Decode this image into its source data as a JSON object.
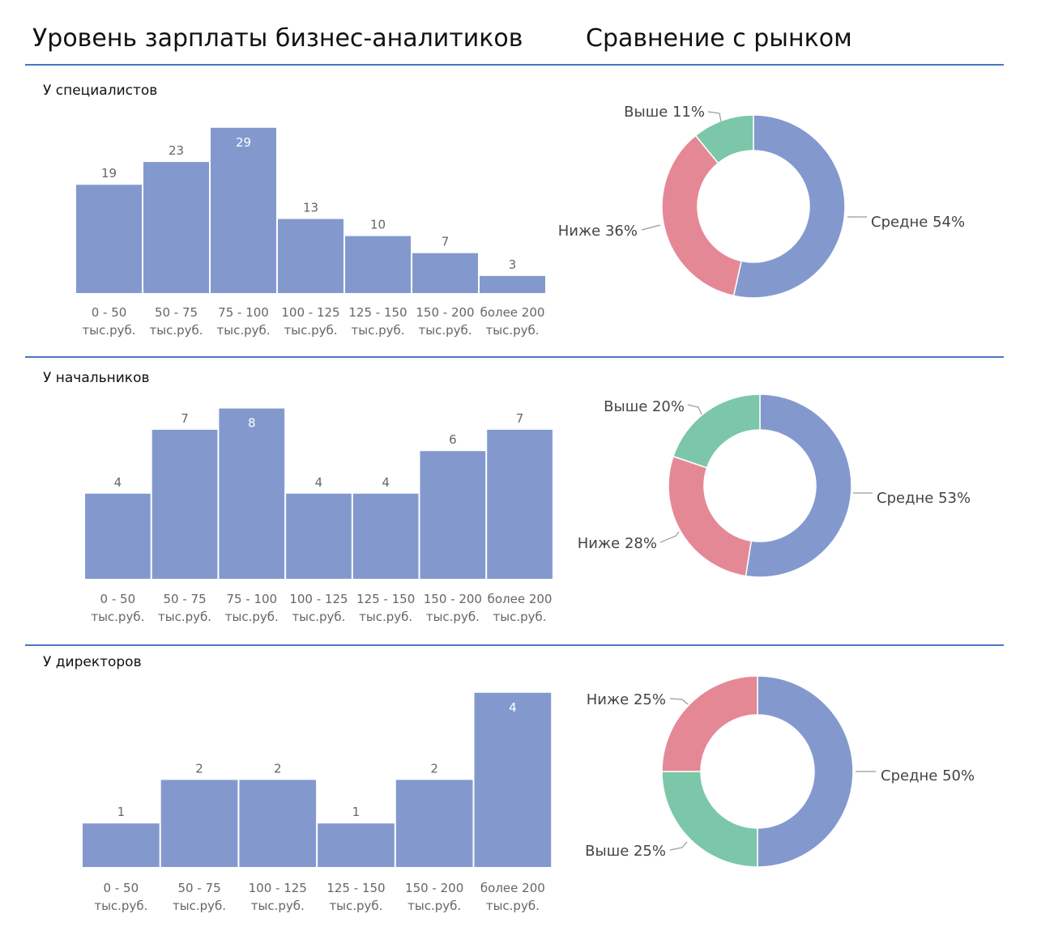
{
  "header": {
    "title_left": "Уровень зарплаты бизнес-аналитиков",
    "title_right": "Сравнение с рынком"
  },
  "chart_data": [
    {
      "id": "bar-specialists",
      "type": "bar",
      "title": "У специалистов",
      "categories": [
        [
          "0 - 50",
          "тыс.руб."
        ],
        [
          "50 - 75",
          "тыс.руб."
        ],
        [
          "75 - 100",
          "тыс.руб."
        ],
        [
          "100 - 125",
          "тыс.руб."
        ],
        [
          "125 - 150",
          "тыс.руб."
        ],
        [
          "150 - 200",
          "тыс.руб."
        ],
        [
          "более 200",
          "тыс.руб."
        ]
      ],
      "values": [
        19,
        23,
        29,
        13,
        10,
        7,
        3
      ],
      "grid": false,
      "color": "#8399ce"
    },
    {
      "id": "pie-specialists",
      "type": "pie",
      "donut": true,
      "slices": [
        {
          "label": "Средне 54%",
          "value": 54,
          "color": "#8399ce"
        },
        {
          "label": "Ниже 36%",
          "value": 36,
          "color": "#e58895"
        },
        {
          "label": "Выше 11%",
          "value": 11,
          "color": "#7cc7a9"
        }
      ]
    },
    {
      "id": "bar-managers",
      "type": "bar",
      "title": "У начальников",
      "categories": [
        [
          "0 - 50",
          "тыс.руб."
        ],
        [
          "50 - 75",
          "тыс.руб."
        ],
        [
          "75 - 100",
          "тыс.руб."
        ],
        [
          "100 - 125",
          "тыс.руб."
        ],
        [
          "125 - 150",
          "тыс.руб."
        ],
        [
          "150 - 200",
          "тыс.руб."
        ],
        [
          "более 200",
          "тыс.руб."
        ]
      ],
      "values": [
        4,
        7,
        8,
        4,
        4,
        6,
        7
      ],
      "grid": false,
      "color": "#8399ce"
    },
    {
      "id": "pie-managers",
      "type": "pie",
      "donut": true,
      "slices": [
        {
          "label": "Средне 53%",
          "value": 53,
          "color": "#8399ce"
        },
        {
          "label": "Ниже 28%",
          "value": 28,
          "color": "#e58895"
        },
        {
          "label": "Выше 20%",
          "value": 20,
          "color": "#7cc7a9"
        }
      ]
    },
    {
      "id": "bar-directors",
      "type": "bar",
      "title": "У директоров",
      "categories": [
        [
          "0 - 50",
          "тыс.руб."
        ],
        [
          "50 - 75",
          "тыс.руб."
        ],
        [
          "100 - 125",
          "тыс.руб."
        ],
        [
          "125 - 150",
          "тыс.руб."
        ],
        [
          "150 - 200",
          "тыс.руб."
        ],
        [
          "более 200",
          "тыс.руб."
        ]
      ],
      "values": [
        1,
        2,
        2,
        1,
        2,
        4
      ],
      "grid": false,
      "color": "#8399ce"
    },
    {
      "id": "pie-directors",
      "type": "pie",
      "donut": true,
      "slices": [
        {
          "label": "Средне 50%",
          "value": 50,
          "color": "#8399ce"
        },
        {
          "label": "Выше 25%",
          "value": 25,
          "color": "#7cc7a9"
        },
        {
          "label": "Ниже 25%",
          "value": 25,
          "color": "#e58895"
        }
      ]
    }
  ]
}
